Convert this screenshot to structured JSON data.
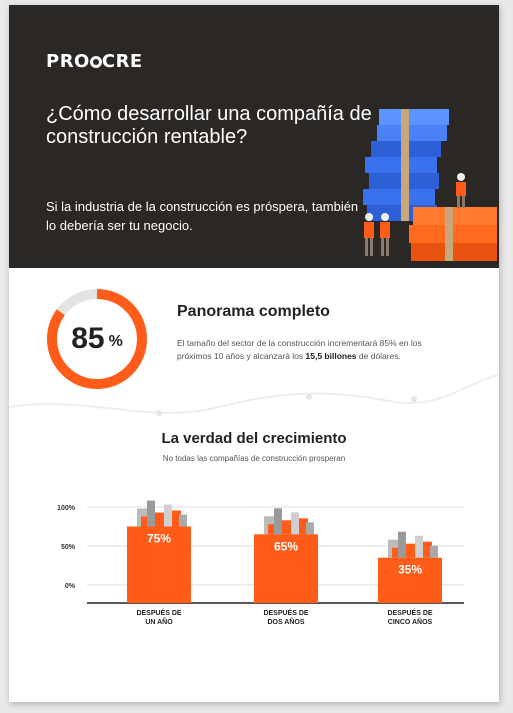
{
  "brand": {
    "logo_prefix": "PRO",
    "logo_suffix": "CRE"
  },
  "hero": {
    "title": "¿Cómo desarrollar una compañía de construcción rentable?",
    "subtitle": "Si la industria de la construcción es próspera, también lo debería ser tu negocio."
  },
  "overview": {
    "percent": "85",
    "percent_unit": "%",
    "percent_value": 85,
    "title": "Panorama completo",
    "body_before": "El tamaño del sector de la construcción incrementará 85% en los próximos 10 años y alcanzará los ",
    "body_bold": "15,5 billones",
    "body_after": " de dólares."
  },
  "growth": {
    "title": "La verdad del crecimiento",
    "subtitle": "No todas las compañías de construcción prosperan"
  },
  "colors": {
    "accent": "#ff5c1a",
    "dark": "#2a2725",
    "grid": "#dddddd"
  },
  "chart_data": {
    "type": "bar",
    "categories": [
      "DESPUÉS DE UN AÑO",
      "DESPUÉS DE DOS AÑOS",
      "DESPUÉS DE CINCO AÑOS"
    ],
    "category_lines": [
      [
        "DESPUÉS DE",
        "UN AÑO"
      ],
      [
        "DESPUÉS DE",
        "DOS AÑOS"
      ],
      [
        "DESPUÉS DE",
        "CINCO AÑOS"
      ]
    ],
    "values": [
      75,
      65,
      35
    ],
    "value_labels": [
      "75%",
      "65%",
      "35%"
    ],
    "yticks": [
      "100%",
      "50%",
      "0%"
    ],
    "ylim": [
      0,
      100
    ],
    "grid": true
  }
}
